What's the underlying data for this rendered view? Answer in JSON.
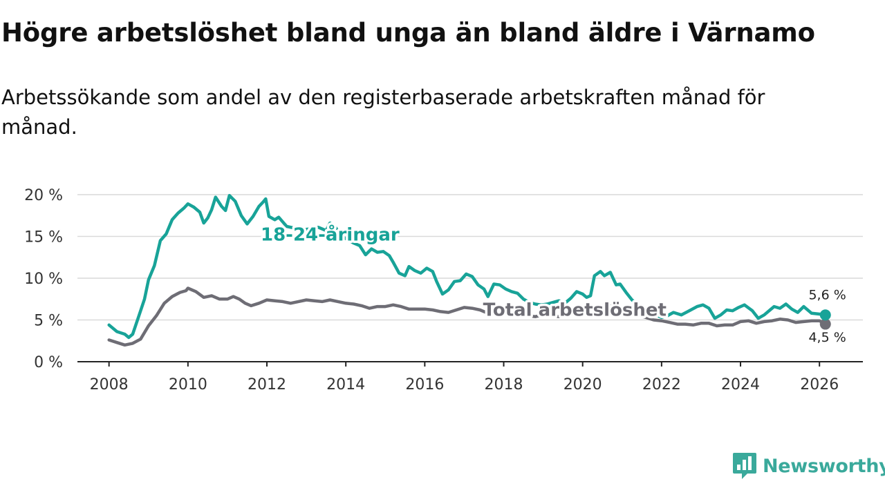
{
  "title": "Högre arbetslöshet bland unga än bland äldre i Värnamo",
  "subtitle": "Arbetssökande som andel av den registerbaserade arbetskraften månad för månad.",
  "brand": {
    "name": "Newsworthy",
    "color": "#3aa99b"
  },
  "chart_data": {
    "type": "line",
    "title": "Högre arbetslöshet bland unga än bland äldre i Värnamo",
    "xlabel": "",
    "ylabel": "",
    "xlim": [
      2007.2,
      2027.1
    ],
    "ylim": [
      0,
      20
    ],
    "x_ticks": [
      2008,
      2010,
      2012,
      2014,
      2016,
      2018,
      2020,
      2022,
      2024,
      2026
    ],
    "x_tick_labels": [
      "2008",
      "2010",
      "2012",
      "2014",
      "2016",
      "2018",
      "2020",
      "2022",
      "2024",
      "2026"
    ],
    "y_ticks": [
      0,
      5,
      10,
      15,
      20
    ],
    "y_tick_labels": [
      "0 %",
      "5 %",
      "10 %",
      "15 %",
      "20 %"
    ],
    "grid": true,
    "series": [
      {
        "name": "18-24-åringar",
        "color": "#18a398",
        "end_label": "5,6 %",
        "points": [
          [
            2008.0,
            4.4
          ],
          [
            2008.2,
            3.6
          ],
          [
            2008.4,
            3.3
          ],
          [
            2008.5,
            2.9
          ],
          [
            2008.6,
            3.3
          ],
          [
            2008.75,
            5.4
          ],
          [
            2008.9,
            7.5
          ],
          [
            2009.0,
            9.8
          ],
          [
            2009.15,
            11.5
          ],
          [
            2009.3,
            14.5
          ],
          [
            2009.45,
            15.3
          ],
          [
            2009.6,
            17.0
          ],
          [
            2009.75,
            17.8
          ],
          [
            2009.9,
            18.4
          ],
          [
            2010.0,
            18.9
          ],
          [
            2010.15,
            18.5
          ],
          [
            2010.3,
            17.9
          ],
          [
            2010.4,
            16.6
          ],
          [
            2010.5,
            17.2
          ],
          [
            2010.6,
            18.2
          ],
          [
            2010.7,
            19.7
          ],
          [
            2010.85,
            18.6
          ],
          [
            2010.95,
            18.1
          ],
          [
            2011.05,
            19.9
          ],
          [
            2011.2,
            19.2
          ],
          [
            2011.35,
            17.5
          ],
          [
            2011.5,
            16.5
          ],
          [
            2011.65,
            17.4
          ],
          [
            2011.8,
            18.6
          ],
          [
            2011.9,
            19.1
          ],
          [
            2011.97,
            19.5
          ],
          [
            2012.05,
            17.4
          ],
          [
            2012.2,
            17.0
          ],
          [
            2012.3,
            17.3
          ],
          [
            2012.5,
            16.2
          ],
          [
            2012.7,
            16.0
          ],
          [
            2012.9,
            15.8
          ],
          [
            2013.1,
            15.9
          ],
          [
            2013.3,
            16.1
          ],
          [
            2013.5,
            15.7
          ],
          [
            2013.6,
            16.6
          ],
          [
            2013.75,
            16.0
          ],
          [
            2013.9,
            15.0
          ],
          [
            2014.05,
            14.6
          ],
          [
            2014.2,
            14.2
          ],
          [
            2014.35,
            13.9
          ],
          [
            2014.5,
            12.8
          ],
          [
            2014.65,
            13.5
          ],
          [
            2014.8,
            13.1
          ],
          [
            2014.95,
            13.2
          ],
          [
            2015.1,
            12.7
          ],
          [
            2015.2,
            11.9
          ],
          [
            2015.35,
            10.6
          ],
          [
            2015.5,
            10.3
          ],
          [
            2015.6,
            11.4
          ],
          [
            2015.75,
            10.9
          ],
          [
            2015.9,
            10.6
          ],
          [
            2016.05,
            11.2
          ],
          [
            2016.2,
            10.8
          ],
          [
            2016.3,
            9.6
          ],
          [
            2016.45,
            8.1
          ],
          [
            2016.6,
            8.6
          ],
          [
            2016.75,
            9.6
          ],
          [
            2016.9,
            9.7
          ],
          [
            2017.05,
            10.5
          ],
          [
            2017.2,
            10.2
          ],
          [
            2017.35,
            9.2
          ],
          [
            2017.5,
            8.7
          ],
          [
            2017.6,
            7.8
          ],
          [
            2017.75,
            9.3
          ],
          [
            2017.9,
            9.2
          ],
          [
            2018.05,
            8.7
          ],
          [
            2018.2,
            8.4
          ],
          [
            2018.35,
            8.2
          ],
          [
            2018.5,
            7.5
          ],
          [
            2018.65,
            7.1
          ],
          [
            2018.8,
            6.9
          ],
          [
            2018.95,
            6.8
          ],
          [
            2019.1,
            6.9
          ],
          [
            2019.25,
            7.1
          ],
          [
            2019.4,
            7.3
          ],
          [
            2019.55,
            7.0
          ],
          [
            2019.7,
            7.6
          ],
          [
            2019.85,
            8.4
          ],
          [
            2020.0,
            8.1
          ],
          [
            2020.1,
            7.7
          ],
          [
            2020.2,
            7.9
          ],
          [
            2020.3,
            10.3
          ],
          [
            2020.45,
            10.8
          ],
          [
            2020.55,
            10.3
          ],
          [
            2020.7,
            10.7
          ],
          [
            2020.85,
            9.2
          ],
          [
            2020.95,
            9.3
          ],
          [
            2021.1,
            8.3
          ],
          [
            2021.25,
            7.4
          ],
          [
            2021.4,
            6.8
          ],
          [
            2021.55,
            6.0
          ],
          [
            2021.7,
            5.8
          ],
          [
            2021.85,
            5.6
          ],
          [
            2022.0,
            5.3
          ],
          [
            2022.15,
            5.5
          ],
          [
            2022.3,
            5.9
          ],
          [
            2022.5,
            5.6
          ],
          [
            2022.7,
            6.1
          ],
          [
            2022.9,
            6.6
          ],
          [
            2023.05,
            6.8
          ],
          [
            2023.2,
            6.4
          ],
          [
            2023.35,
            5.2
          ],
          [
            2023.5,
            5.6
          ],
          [
            2023.65,
            6.2
          ],
          [
            2023.8,
            6.1
          ],
          [
            2023.95,
            6.5
          ],
          [
            2024.1,
            6.8
          ],
          [
            2024.3,
            6.1
          ],
          [
            2024.45,
            5.2
          ],
          [
            2024.6,
            5.6
          ],
          [
            2024.75,
            6.2
          ],
          [
            2024.85,
            6.6
          ],
          [
            2025.0,
            6.4
          ],
          [
            2025.15,
            6.9
          ],
          [
            2025.3,
            6.3
          ],
          [
            2025.45,
            5.9
          ],
          [
            2025.6,
            6.6
          ],
          [
            2025.8,
            5.8
          ],
          [
            2026.0,
            5.7
          ],
          [
            2026.15,
            5.6
          ]
        ]
      },
      {
        "name": "Total arbetslöshet",
        "color": "#6e6d75",
        "end_label": "4,5 %",
        "points": [
          [
            2008.0,
            2.6
          ],
          [
            2008.2,
            2.3
          ],
          [
            2008.4,
            2.0
          ],
          [
            2008.6,
            2.2
          ],
          [
            2008.8,
            2.7
          ],
          [
            2009.0,
            4.3
          ],
          [
            2009.2,
            5.5
          ],
          [
            2009.4,
            7.0
          ],
          [
            2009.6,
            7.8
          ],
          [
            2009.8,
            8.3
          ],
          [
            2009.95,
            8.5
          ],
          [
            2010.0,
            8.8
          ],
          [
            2010.2,
            8.4
          ],
          [
            2010.4,
            7.7
          ],
          [
            2010.6,
            7.9
          ],
          [
            2010.8,
            7.5
          ],
          [
            2011.0,
            7.5
          ],
          [
            2011.15,
            7.8
          ],
          [
            2011.3,
            7.5
          ],
          [
            2011.45,
            7.0
          ],
          [
            2011.6,
            6.7
          ],
          [
            2011.8,
            7.0
          ],
          [
            2012.0,
            7.4
          ],
          [
            2012.2,
            7.3
          ],
          [
            2012.4,
            7.2
          ],
          [
            2012.6,
            7.0
          ],
          [
            2012.8,
            7.2
          ],
          [
            2013.0,
            7.4
          ],
          [
            2013.2,
            7.3
          ],
          [
            2013.4,
            7.2
          ],
          [
            2013.6,
            7.4
          ],
          [
            2013.8,
            7.2
          ],
          [
            2014.0,
            7.0
          ],
          [
            2014.2,
            6.9
          ],
          [
            2014.4,
            6.7
          ],
          [
            2014.6,
            6.4
          ],
          [
            2014.8,
            6.6
          ],
          [
            2015.0,
            6.6
          ],
          [
            2015.2,
            6.8
          ],
          [
            2015.4,
            6.6
          ],
          [
            2015.6,
            6.3
          ],
          [
            2015.8,
            6.3
          ],
          [
            2016.0,
            6.3
          ],
          [
            2016.2,
            6.2
          ],
          [
            2016.4,
            6.0
          ],
          [
            2016.6,
            5.9
          ],
          [
            2016.8,
            6.2
          ],
          [
            2017.0,
            6.5
          ],
          [
            2017.2,
            6.4
          ],
          [
            2017.4,
            6.2
          ],
          [
            2017.6,
            5.8
          ],
          [
            2017.8,
            5.9
          ],
          [
            2018.0,
            5.8
          ],
          [
            2018.2,
            5.6
          ],
          [
            2018.4,
            5.6
          ],
          [
            2018.6,
            5.5
          ],
          [
            2018.8,
            5.4
          ],
          [
            2019.0,
            5.6
          ],
          [
            2019.2,
            5.5
          ],
          [
            2019.4,
            5.4
          ],
          [
            2019.6,
            5.6
          ],
          [
            2019.8,
            6.0
          ],
          [
            2020.0,
            6.3
          ],
          [
            2020.2,
            6.2
          ],
          [
            2020.4,
            6.6
          ],
          [
            2020.6,
            6.8
          ],
          [
            2020.8,
            6.6
          ],
          [
            2021.0,
            6.3
          ],
          [
            2021.2,
            6.0
          ],
          [
            2021.4,
            5.6
          ],
          [
            2021.6,
            5.3
          ],
          [
            2021.8,
            5.0
          ],
          [
            2022.0,
            4.9
          ],
          [
            2022.2,
            4.7
          ],
          [
            2022.4,
            4.5
          ],
          [
            2022.6,
            4.5
          ],
          [
            2022.8,
            4.4
          ],
          [
            2023.0,
            4.6
          ],
          [
            2023.2,
            4.6
          ],
          [
            2023.4,
            4.3
          ],
          [
            2023.6,
            4.4
          ],
          [
            2023.8,
            4.4
          ],
          [
            2024.0,
            4.8
          ],
          [
            2024.2,
            4.9
          ],
          [
            2024.4,
            4.6
          ],
          [
            2024.6,
            4.8
          ],
          [
            2024.8,
            4.9
          ],
          [
            2025.0,
            5.1
          ],
          [
            2025.2,
            5.0
          ],
          [
            2025.4,
            4.7
          ],
          [
            2025.6,
            4.8
          ],
          [
            2025.8,
            4.9
          ],
          [
            2026.0,
            4.9
          ],
          [
            2026.15,
            4.5
          ]
        ]
      }
    ]
  }
}
